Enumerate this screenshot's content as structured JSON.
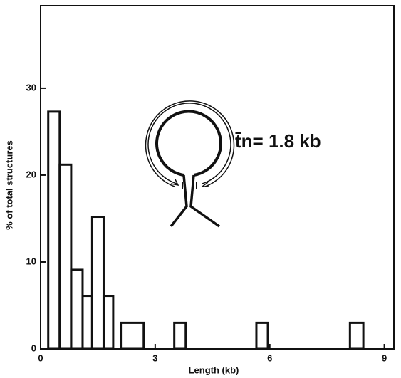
{
  "chart_data": {
    "type": "histogram",
    "annotation": "t̄n= 1.8 kb",
    "xlabel": "Length (kb)",
    "ylabel": "% of total structures",
    "bins": [
      0.2,
      0.5,
      0.8,
      1.1,
      1.35,
      1.65,
      1.9,
      2.1,
      2.7,
      3.5,
      3.8,
      5.65,
      5.95,
      8.1,
      8.45
    ],
    "values": [
      27.3,
      21.2,
      9.1,
      6.1,
      15.2,
      6.1,
      0,
      3.0,
      0,
      3.0,
      0,
      3.0,
      0,
      3.0
    ],
    "color": "#111111",
    "xlim": [
      0,
      9.25
    ],
    "xticks": [
      0,
      3,
      6,
      9
    ],
    "ylim": [
      0,
      39.5
    ],
    "yticks": [
      0,
      10,
      20,
      30
    ]
  }
}
